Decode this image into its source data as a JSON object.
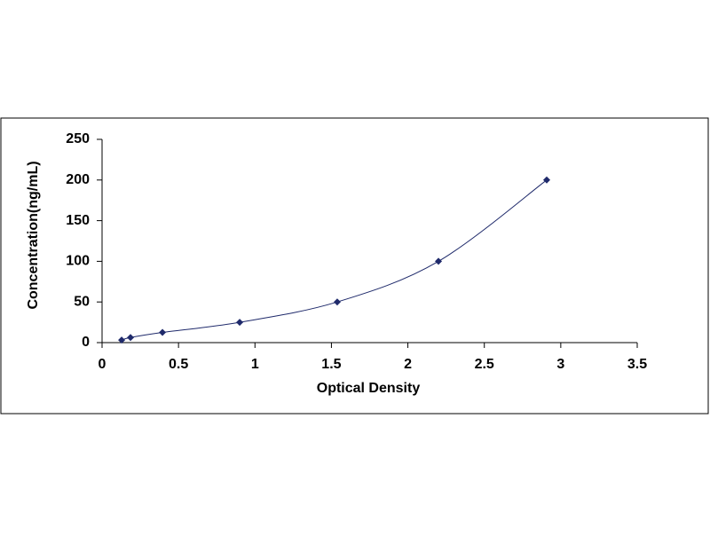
{
  "chart_data": {
    "type": "scatter",
    "x_label": "Optical Density",
    "y_label": "Concentration(ng/mL)",
    "x": [
      0.128,
      0.186,
      0.395,
      0.9,
      1.538,
      2.2,
      2.908
    ],
    "values": [
      3.12,
      6.25,
      12.5,
      25,
      50,
      100,
      200
    ],
    "color": "#1f2a6b",
    "line": "smooth",
    "xlim": [
      0,
      3.5
    ],
    "xticks": [
      0,
      0.5,
      1,
      1.5,
      2,
      2.5,
      3,
      3.5
    ],
    "ylim": [
      0,
      250
    ],
    "yticks": [
      0,
      50,
      100,
      150,
      200,
      250
    ],
    "grid": false
  }
}
